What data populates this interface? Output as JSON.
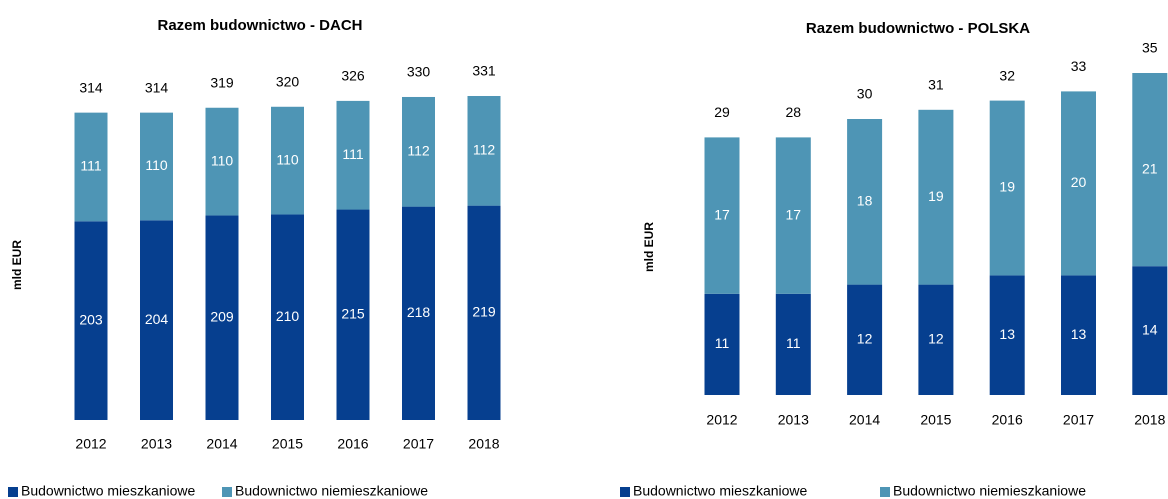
{
  "chart_data": [
    {
      "type": "stacked_bar",
      "title": "Razem budownictwo - DACH",
      "y_label": "mld EUR",
      "categories": [
        "2012",
        "2013",
        "2014",
        "2015",
        "2016",
        "2017",
        "2018"
      ],
      "series": [
        {
          "name": "Budownictwo mieszkaniowe",
          "color": "#063f8f",
          "values": [
            203,
            204,
            209,
            210,
            215,
            218,
            219
          ]
        },
        {
          "name": "Budownictwo niemieszkaniowe",
          "color": "#4e95b5",
          "values": [
            111,
            110,
            110,
            110,
            111,
            112,
            112
          ]
        }
      ],
      "totals": [
        314,
        314,
        319,
        320,
        326,
        330,
        331
      ]
    },
    {
      "type": "stacked_bar",
      "title": "Razem budownictwo - POLSKA",
      "y_label": "mld EUR",
      "categories": [
        "2012",
        "2013",
        "2014",
        "2015",
        "2016",
        "2017",
        "2018"
      ],
      "series": [
        {
          "name": "Budownictwo mieszkaniowe",
          "color": "#063f8f",
          "values": [
            11,
            11,
            12,
            12,
            13,
            13,
            14
          ]
        },
        {
          "name": "Budownictwo niemieszkaniowe",
          "color": "#4e95b5",
          "values": [
            17,
            17,
            18,
            19,
            19,
            20,
            21
          ]
        }
      ],
      "totals": [
        29,
        28,
        30,
        31,
        32,
        33,
        35
      ]
    }
  ]
}
